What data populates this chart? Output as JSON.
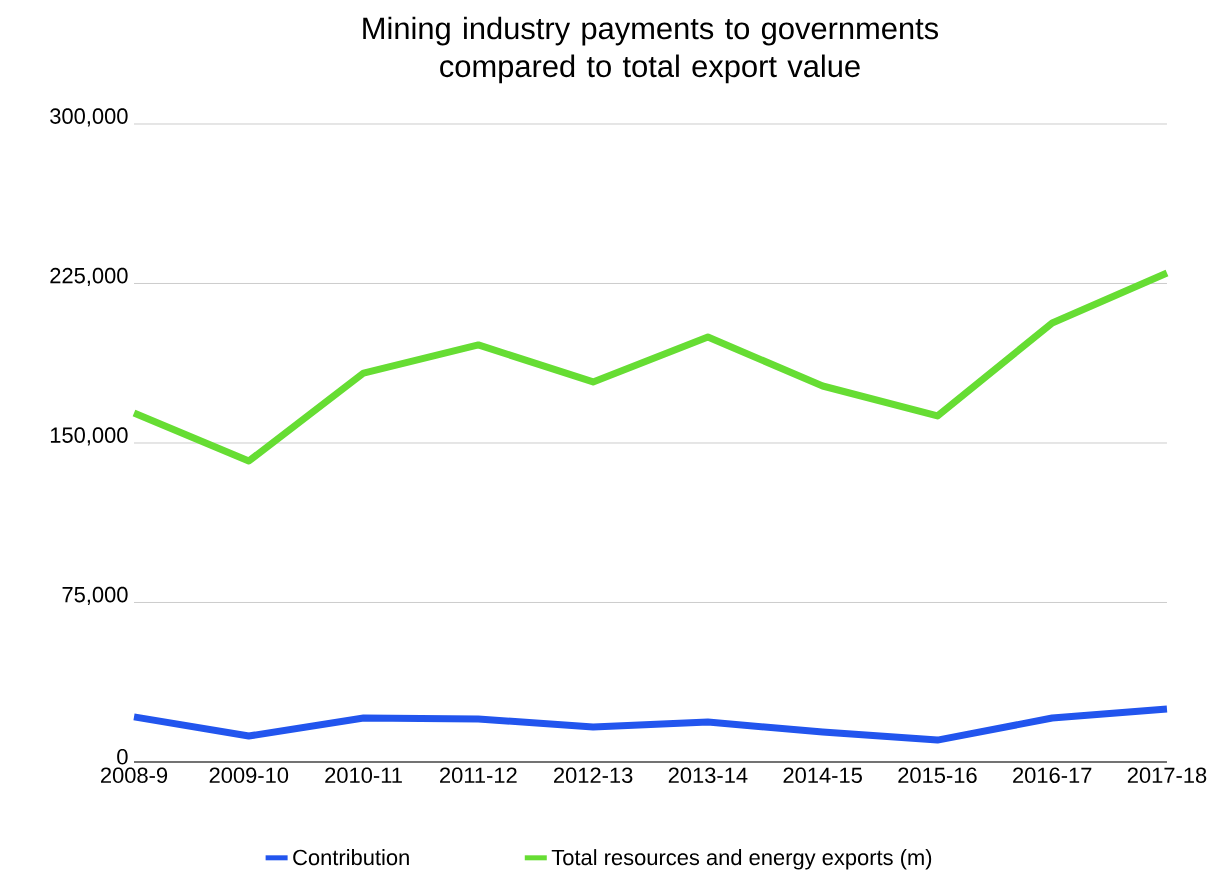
{
  "chart_data": {
    "type": "line",
    "title": "Mining industry payments to governments compared to total export value",
    "categories": [
      "2008-9",
      "2009-10",
      "2010-11",
      "2011-12",
      "2012-13",
      "2013-14",
      "2014-15",
      "2015-16",
      "2016-17",
      "2017-18"
    ],
    "series": [
      {
        "name": "Contribution",
        "color": "#2255ee",
        "values": [
          21200,
          12200,
          20700,
          20200,
          16500,
          18800,
          14100,
          10300,
          20700,
          24900
        ]
      },
      {
        "name": "Total resources and energy exports (m)",
        "color": "#66dd33",
        "values": [
          164100,
          141500,
          182900,
          196100,
          178700,
          199800,
          176800,
          162700,
          206400,
          229900
        ]
      }
    ],
    "ylim": [
      0,
      300000
    ],
    "yticks": [
      0,
      {
        "value": 75000,
        "label": "75,000"
      },
      {
        "value": 150000,
        "label": "150,000"
      },
      {
        "value": 225000,
        "label": "225,000"
      },
      {
        "value": 300000,
        "label": "300,000"
      }
    ],
    "grid": "y",
    "legend": "bottom",
    "marker": "none",
    "line_style": "solid"
  }
}
